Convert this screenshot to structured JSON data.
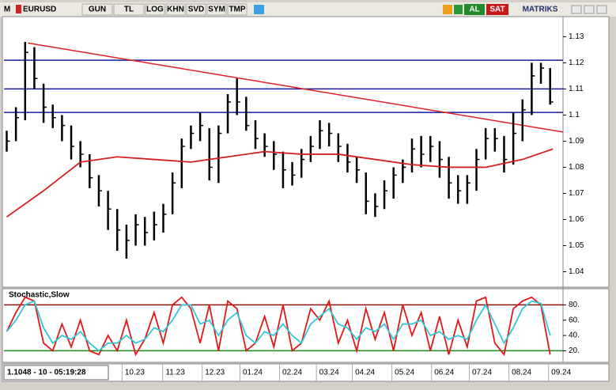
{
  "toolbar": {
    "logo": "M",
    "symbol": "EURUSD",
    "buttons": [
      "GUN",
      "TL",
      "LOG",
      "KHN",
      "SVD",
      "SYM",
      "TMP"
    ],
    "buy": "AL",
    "sell": "SAT",
    "brand": "MATRIKS"
  },
  "status": "1.1048 - 10 - 05:19:28",
  "chart_data": [
    {
      "type": "ohlc",
      "xlim": [
        -0.3,
        60.4
      ],
      "xticks": [
        {
          "value": 13.9,
          "label": "10.23"
        },
        {
          "value": 18.3,
          "label": "11.23"
        },
        {
          "value": 22.6,
          "label": "12.23"
        },
        {
          "value": 26.7,
          "label": "01.24"
        },
        {
          "value": 31.0,
          "label": "02.24"
        },
        {
          "value": 35.0,
          "label": "03.24"
        },
        {
          "value": 38.9,
          "label": "04.24"
        },
        {
          "value": 43.2,
          "label": "05.24"
        },
        {
          "value": 47.5,
          "label": "06.24"
        },
        {
          "value": 51.6,
          "label": "07.24"
        },
        {
          "value": 55.9,
          "label": "08.24"
        },
        {
          "value": 60.2,
          "label": "09.24"
        }
      ],
      "ylim": [
        1.035,
        1.138
      ],
      "yticks": [
        1.04,
        1.05,
        1.06,
        1.07,
        1.08,
        1.09,
        1.1,
        1.11,
        1.12,
        1.13
      ],
      "color": "#000000",
      "high": [
        1.094,
        1.103,
        1.128,
        1.126,
        1.112,
        1.104,
        1.1,
        1.096,
        1.09,
        1.085,
        1.077,
        1.071,
        1.064,
        1.058,
        1.062,
        1.061,
        1.063,
        1.066,
        1.078,
        1.091,
        1.096,
        1.101,
        1.095,
        1.096,
        1.108,
        1.114,
        1.107,
        1.098,
        1.093,
        1.09,
        1.086,
        1.082,
        1.087,
        1.092,
        1.098,
        1.097,
        1.093,
        1.089,
        1.084,
        1.078,
        1.07,
        1.075,
        1.08,
        1.083,
        1.091,
        1.092,
        1.092,
        1.09,
        1.084,
        1.077,
        1.077,
        1.087,
        1.095,
        1.095,
        1.092,
        1.101,
        1.106,
        1.12,
        1.12,
        1.118
      ],
      "low": [
        1.086,
        1.09,
        1.098,
        1.11,
        1.097,
        1.095,
        1.09,
        1.083,
        1.08,
        1.072,
        1.065,
        1.056,
        1.048,
        1.045,
        1.05,
        1.05,
        1.052,
        1.055,
        1.062,
        1.072,
        1.087,
        1.09,
        1.075,
        1.074,
        1.093,
        1.1,
        1.094,
        1.087,
        1.084,
        1.079,
        1.072,
        1.073,
        1.076,
        1.082,
        1.087,
        1.088,
        1.082,
        1.078,
        1.074,
        1.062,
        1.061,
        1.064,
        1.068,
        1.074,
        1.078,
        1.08,
        1.082,
        1.076,
        1.068,
        1.066,
        1.066,
        1.071,
        1.083,
        1.086,
        1.078,
        1.081,
        1.09,
        1.1,
        1.112,
        1.104
      ],
      "close": [
        1.09,
        1.099,
        1.124,
        1.114,
        1.103,
        1.099,
        1.096,
        1.088,
        1.085,
        1.076,
        1.071,
        1.064,
        1.056,
        1.052,
        1.058,
        1.055,
        1.058,
        1.062,
        1.074,
        1.088,
        1.093,
        1.096,
        1.08,
        1.093,
        1.105,
        1.105,
        1.096,
        1.091,
        1.088,
        1.085,
        1.079,
        1.077,
        1.083,
        1.088,
        1.094,
        1.093,
        1.088,
        1.082,
        1.079,
        1.067,
        1.065,
        1.071,
        1.077,
        1.08,
        1.087,
        1.085,
        1.088,
        1.083,
        1.074,
        1.071,
        1.074,
        1.083,
        1.091,
        1.091,
        1.083,
        1.093,
        1.102,
        1.115,
        1.118,
        1.105
      ],
      "moving_average": {
        "color": "#d42020",
        "x": [
          0,
          4,
          8,
          12,
          16,
          20,
          24,
          28,
          32,
          36,
          40,
          44,
          48,
          52,
          56,
          59.3
        ],
        "values": [
          1.061,
          1.071,
          1.082,
          1.084,
          1.083,
          1.082,
          1.084,
          1.086,
          1.085,
          1.085,
          1.083,
          1.081,
          1.08,
          1.08,
          1.083,
          1.087
        ]
      },
      "levels": {
        "color": "#1a1aa0",
        "values": [
          1.121,
          1.11,
          1.101
        ]
      },
      "trendline": {
        "color": "#e02020",
        "x": [
          2.3,
          60.4
        ],
        "values": [
          1.1276,
          1.0935
        ]
      }
    },
    {
      "type": "line",
      "title": "Stochastic,Slow",
      "xlim": [
        -0.3,
        60.4
      ],
      "ylim": [
        8,
        98
      ],
      "yticks": [
        {
          "value": 80,
          "label": "80."
        },
        {
          "value": 60,
          "label": "60."
        },
        {
          "value": 40,
          "label": "40."
        },
        {
          "value": 20,
          "label": "20."
        }
      ],
      "levels": [
        {
          "value": 80,
          "color": "#8b1010"
        },
        {
          "value": 20,
          "color": "#1a8a1a"
        }
      ],
      "series": [
        {
          "color": "#e01818",
          "values": [
            45,
            70,
            90,
            85,
            30,
            20,
            55,
            25,
            60,
            20,
            15,
            40,
            20,
            60,
            15,
            35,
            70,
            30,
            80,
            90,
            75,
            30,
            80,
            20,
            85,
            75,
            20,
            30,
            65,
            25,
            80,
            20,
            30,
            75,
            60,
            85,
            30,
            60,
            20,
            75,
            35,
            70,
            20,
            80,
            40,
            70,
            20,
            65,
            15,
            60,
            25,
            85,
            90,
            30,
            15,
            75,
            85,
            90,
            80,
            15
          ]
        },
        {
          "color": "#30c8d8",
          "values": [
            45,
            60,
            80,
            85,
            50,
            30,
            40,
            35,
            45,
            30,
            20,
            30,
            30,
            40,
            30,
            35,
            50,
            45,
            60,
            80,
            80,
            55,
            60,
            40,
            60,
            70,
            40,
            30,
            45,
            40,
            55,
            40,
            30,
            55,
            65,
            75,
            55,
            50,
            35,
            50,
            45,
            55,
            35,
            55,
            55,
            60,
            40,
            45,
            35,
            40,
            35,
            60,
            80,
            55,
            30,
            50,
            75,
            85,
            82,
            40
          ]
        }
      ]
    }
  ]
}
